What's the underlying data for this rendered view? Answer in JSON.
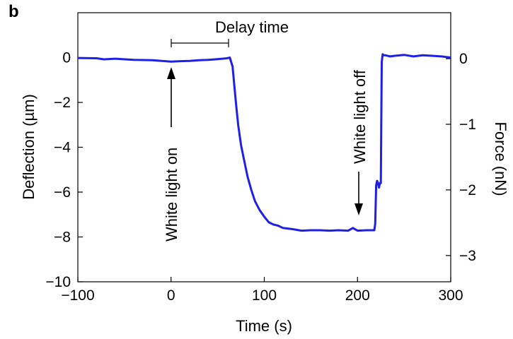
{
  "panel_label": "b",
  "chart_data": {
    "type": "line",
    "title": "",
    "xlabel": "Time (s)",
    "ylabel": "Deflection (µm)",
    "y2label": "Force (nN)",
    "xlim": [
      -100,
      300
    ],
    "ylim": [
      -10,
      2
    ],
    "y2lim": [
      -3.4,
      0.7
    ],
    "grid": false,
    "legend": "none",
    "line_color": "#1f1fe6",
    "x_ticks": [
      -100,
      0,
      100,
      200,
      300
    ],
    "x_tick_labels": [
      "−100",
      "0",
      "100",
      "200",
      "300"
    ],
    "y_ticks": [
      0,
      -2,
      -4,
      -6,
      -8,
      -10
    ],
    "y_tick_labels": [
      "0",
      "−2",
      "−4",
      "−6",
      "−8",
      "−10"
    ],
    "y2_ticks": [
      0,
      -1,
      -2,
      -3
    ],
    "y2_tick_labels": [
      "0",
      "−1",
      "−2",
      "−3"
    ],
    "annotations": {
      "delay_time": "Delay time",
      "light_on": "White light on",
      "light_off": "White light off"
    },
    "series": [
      {
        "x": [
          -100,
          -80,
          -72,
          -60,
          -40,
          -20,
          -10,
          0,
          10,
          20,
          30,
          40,
          50,
          60,
          63,
          66,
          68,
          70,
          72,
          75,
          78,
          82,
          86,
          90,
          95,
          100,
          105,
          110,
          115,
          120,
          130,
          140,
          150,
          160,
          170,
          180,
          190,
          195,
          200,
          210,
          218,
          219,
          220,
          221,
          222,
          223,
          224,
          225,
          226,
          227,
          228,
          230,
          235,
          240,
          250,
          260,
          270,
          280,
          290,
          300
        ],
        "y": [
          -0.02,
          -0.03,
          -0.08,
          -0.05,
          -0.1,
          -0.12,
          -0.15,
          -0.18,
          -0.16,
          -0.15,
          -0.12,
          -0.1,
          -0.07,
          -0.03,
          0.0,
          -0.4,
          -1.3,
          -2.2,
          -3.0,
          -3.9,
          -4.5,
          -5.3,
          -5.9,
          -6.4,
          -6.8,
          -7.1,
          -7.35,
          -7.45,
          -7.5,
          -7.6,
          -7.65,
          -7.72,
          -7.7,
          -7.7,
          -7.72,
          -7.7,
          -7.72,
          -7.6,
          -7.72,
          -7.7,
          -7.7,
          -7.4,
          -5.7,
          -5.5,
          -5.6,
          -5.8,
          -5.6,
          -5.6,
          -0.2,
          0.15,
          0.1,
          0.1,
          0.05,
          0.08,
          0.12,
          0.05,
          0.1,
          0.08,
          0.05,
          0.0
        ]
      }
    ]
  }
}
